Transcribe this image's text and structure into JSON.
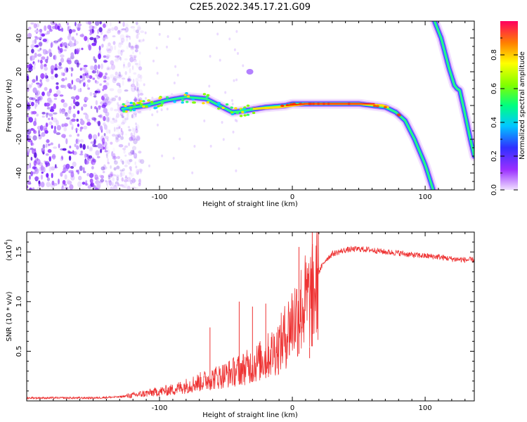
{
  "title": "C2E5.2022.345.17.21.G09",
  "chart_data": [
    {
      "type": "heatmap",
      "xlabel": "Height of straight line (km)",
      "ylabel": "Frequency (Hz)",
      "xlim": [
        -200,
        137
      ],
      "ylim": [
        -50,
        50
      ],
      "xticks": [
        -100,
        0,
        100
      ],
      "yticks": [
        -40,
        -20,
        0,
        20,
        40
      ],
      "colorbar": {
        "label": "Normalized spectral amplitude",
        "range": [
          0,
          1
        ],
        "ticks": [
          0.0,
          0.2,
          0.4,
          0.6,
          0.8
        ]
      },
      "track": {
        "x": [
          -128,
          -110,
          -95,
          -80,
          -65,
          -55,
          -45,
          -35,
          -20,
          -5,
          0,
          10,
          30,
          50,
          70,
          78,
          85,
          92,
          100,
          106
        ],
        "y": [
          -2,
          0,
          3,
          5,
          4,
          0,
          -4,
          -3,
          -1,
          0,
          1,
          1,
          1,
          1,
          -1,
          -4,
          -9,
          -20,
          -35,
          -50
        ]
      },
      "track2": {
        "x": [
          107,
          112,
          118,
          122,
          124,
          126,
          130,
          134,
          137
        ],
        "y": [
          50,
          40,
          22,
          12,
          10,
          9,
          -5,
          -20,
          -30
        ]
      },
      "noise_region_x": [
        -200,
        -125
      ],
      "blob": {
        "x": -32,
        "y": 20
      }
    },
    {
      "type": "line",
      "xlabel": "Height of straight line (km)",
      "ylabel": "SNR (10 * v/v)",
      "yscale_label": "(x10",
      "yscale_exp": "4",
      "xlim": [
        -200,
        137
      ],
      "ylim": [
        0,
        1.7
      ],
      "xticks": [
        -100,
        0,
        100
      ],
      "yticks": [
        0.5,
        1.0,
        1.5
      ],
      "color": "#ee3333",
      "envelope": {
        "x": [
          -200,
          -150,
          -130,
          -120,
          -110,
          -100,
          -90,
          -80,
          -70,
          -60,
          -50,
          -40,
          -30,
          -20,
          -10,
          -5,
          0,
          5,
          10,
          15,
          20,
          25,
          30,
          40,
          50,
          60,
          70,
          80,
          90,
          100,
          110,
          120,
          130,
          137
        ],
        "y": [
          0.03,
          0.03,
          0.04,
          0.06,
          0.08,
          0.1,
          0.12,
          0.16,
          0.2,
          0.24,
          0.28,
          0.33,
          0.38,
          0.46,
          0.58,
          0.7,
          0.85,
          0.95,
          1.05,
          1.1,
          1.3,
          1.42,
          1.48,
          1.52,
          1.53,
          1.52,
          1.5,
          1.49,
          1.47,
          1.46,
          1.45,
          1.43,
          1.42,
          1.42
        ]
      },
      "spikes": [
        {
          "x": -62,
          "y": 0.74
        },
        {
          "x": -40,
          "y": 1.0
        },
        {
          "x": -30,
          "y": 0.95
        },
        {
          "x": -20,
          "y": 0.98
        },
        {
          "x": 5,
          "y": 1.55
        },
        {
          "x": 15,
          "y": 1.72
        },
        {
          "x": 13,
          "y": 0.43
        }
      ]
    }
  ]
}
